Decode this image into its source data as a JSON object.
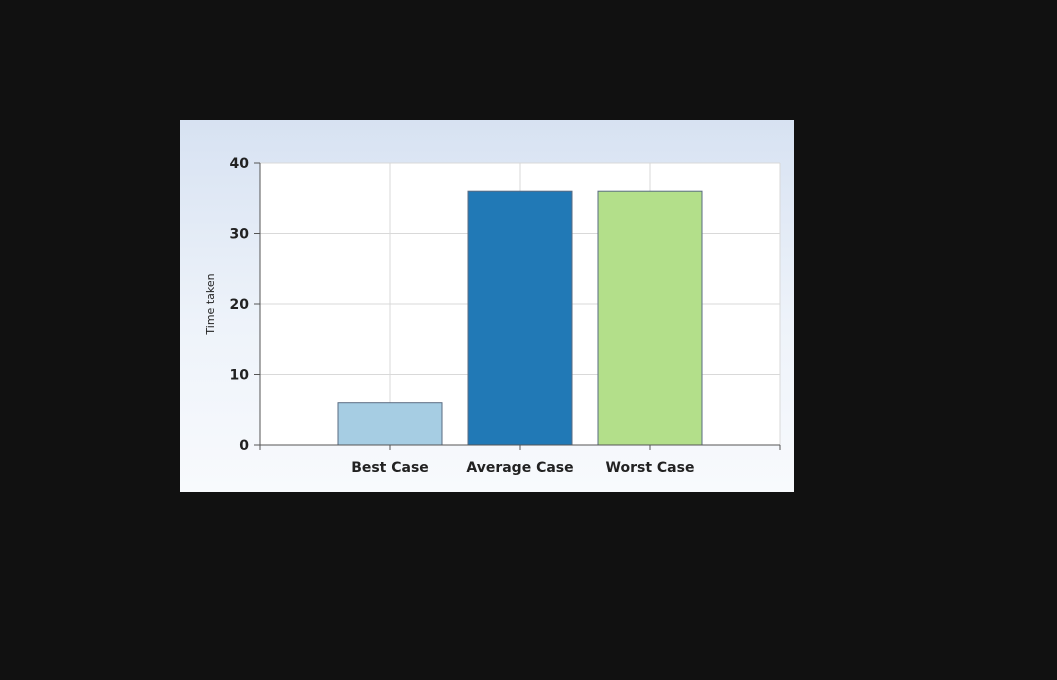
{
  "chart_data": {
    "type": "bar",
    "categories": [
      "Best Case",
      "Average Case",
      "Worst Case"
    ],
    "values": [
      6,
      36,
      36
    ],
    "colors": [
      "#a6cde3",
      "#2179b6",
      "#b3df8a"
    ],
    "bar_outline_color": "#5a6b82",
    "title": "",
    "xlabel": "",
    "ylabel": "Time taken",
    "ylim": [
      0,
      40
    ],
    "yticks": [
      0,
      10,
      20,
      30,
      40
    ],
    "grid": true,
    "legend": "none"
  }
}
